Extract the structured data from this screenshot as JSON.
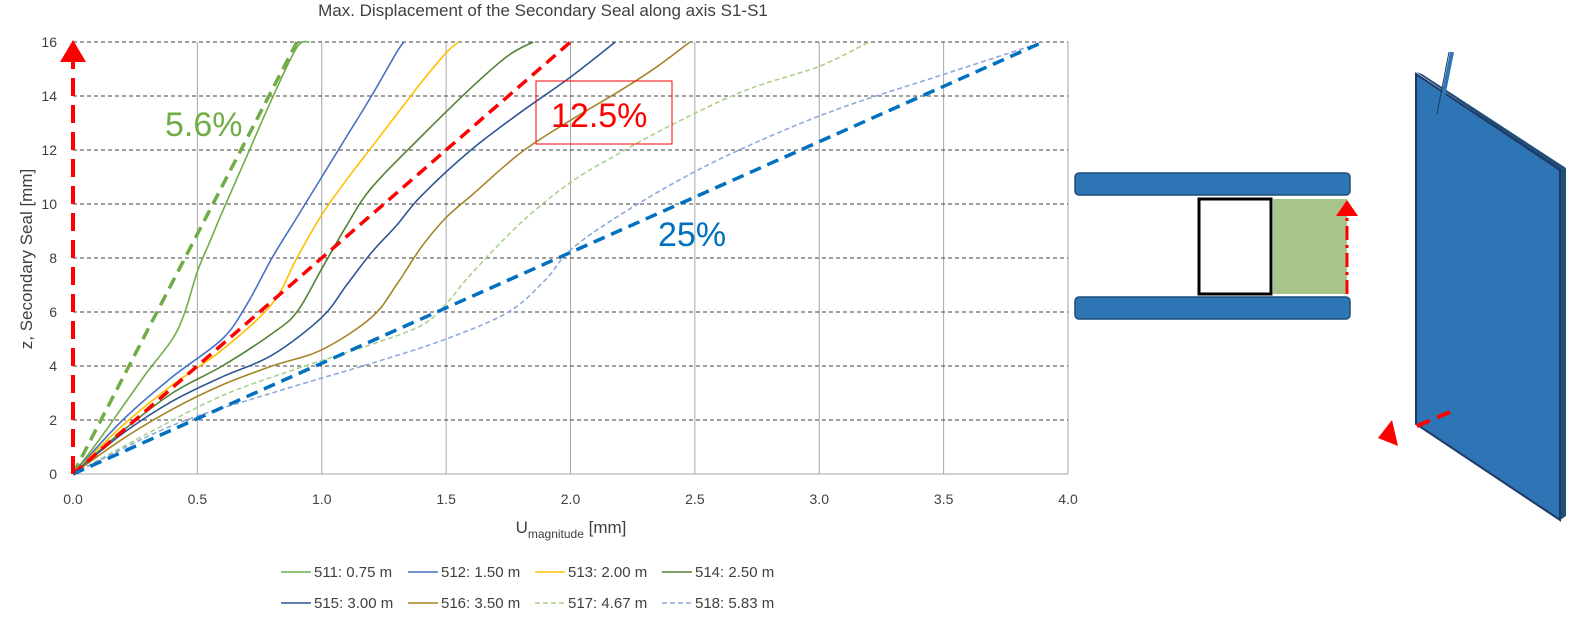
{
  "chart_data": {
    "type": "line",
    "title": "Max. Displacement of the Secondary Seal along axis S1-S1",
    "xlabel": {
      "main": "U",
      "sub": "magnitude",
      "unit": " [mm]"
    },
    "ylabel": "z, Secondary Seal [mm]",
    "xlim": [
      0,
      4
    ],
    "ylim": [
      0,
      16
    ],
    "x_ticks": [
      "0.0",
      "0.5",
      "1.0",
      "1.5",
      "2.0",
      "2.5",
      "3.0",
      "3.5",
      "4.0"
    ],
    "y_ticks": [
      "0",
      "2",
      "4",
      "6",
      "8",
      "10",
      "12",
      "14",
      "16"
    ],
    "grid": {
      "x": "solid",
      "y": "dashed"
    },
    "legend_position": "bottom",
    "series": [
      {
        "name": "511: 0.75 m",
        "color": "#70ad47",
        "dash": "solid",
        "points": [
          [
            0,
            0
          ],
          [
            0.1,
            1.2
          ],
          [
            0.2,
            2.5
          ],
          [
            0.3,
            3.8
          ],
          [
            0.4,
            5.0
          ],
          [
            0.45,
            6.0
          ],
          [
            0.5,
            7.5
          ],
          [
            0.55,
            8.6
          ],
          [
            0.6,
            9.7
          ],
          [
            0.7,
            11.8
          ],
          [
            0.8,
            13.9
          ],
          [
            0.9,
            15.8
          ],
          [
            0.95,
            16
          ]
        ]
      },
      {
        "name": "512: 1.50 m",
        "color": "#4472c4",
        "dash": "solid",
        "points": [
          [
            0,
            0
          ],
          [
            0.2,
            2.0
          ],
          [
            0.4,
            3.6
          ],
          [
            0.6,
            5.0
          ],
          [
            0.7,
            6.3
          ],
          [
            0.8,
            8.0
          ],
          [
            0.9,
            9.5
          ],
          [
            1.0,
            11.0
          ],
          [
            1.1,
            12.5
          ],
          [
            1.2,
            14.0
          ],
          [
            1.3,
            15.6
          ],
          [
            1.33,
            16
          ]
        ]
      },
      {
        "name": "513: 2.00 m",
        "color": "#ffc000",
        "dash": "solid",
        "points": [
          [
            0,
            0
          ],
          [
            0.2,
            1.8
          ],
          [
            0.4,
            3.3
          ],
          [
            0.6,
            4.6
          ],
          [
            0.8,
            6.3
          ],
          [
            0.9,
            8.0
          ],
          [
            1.0,
            9.6
          ],
          [
            1.1,
            10.9
          ],
          [
            1.2,
            12.1
          ],
          [
            1.3,
            13.3
          ],
          [
            1.4,
            14.5
          ],
          [
            1.5,
            15.6
          ],
          [
            1.55,
            16
          ]
        ]
      },
      {
        "name": "514: 2.50 m",
        "color": "#548235",
        "dash": "solid",
        "points": [
          [
            0,
            0
          ],
          [
            0.2,
            1.6
          ],
          [
            0.4,
            3.0
          ],
          [
            0.6,
            4.0
          ],
          [
            0.8,
            5.2
          ],
          [
            0.9,
            6.0
          ],
          [
            1.0,
            7.6
          ],
          [
            1.1,
            9.2
          ],
          [
            1.2,
            10.6
          ],
          [
            1.4,
            12.5
          ],
          [
            1.6,
            14.3
          ],
          [
            1.75,
            15.5
          ],
          [
            1.85,
            16
          ]
        ]
      },
      {
        "name": "515: 3.00 m",
        "color": "#2f5597",
        "dash": "solid",
        "points": [
          [
            0,
            0
          ],
          [
            0.2,
            1.5
          ],
          [
            0.4,
            2.7
          ],
          [
            0.6,
            3.6
          ],
          [
            0.8,
            4.4
          ],
          [
            1.0,
            5.8
          ],
          [
            1.1,
            7.0
          ],
          [
            1.2,
            8.2
          ],
          [
            1.3,
            9.2
          ],
          [
            1.4,
            10.3
          ],
          [
            1.6,
            12.0
          ],
          [
            1.8,
            13.4
          ],
          [
            2.0,
            14.7
          ],
          [
            2.18,
            16
          ]
        ]
      },
      {
        "name": "516: 3.50 m",
        "color": "#a58427",
        "dash": "solid",
        "points": [
          [
            0,
            0
          ],
          [
            0.2,
            1.3
          ],
          [
            0.4,
            2.4
          ],
          [
            0.6,
            3.3
          ],
          [
            0.8,
            4.0
          ],
          [
            1.0,
            4.6
          ],
          [
            1.2,
            5.8
          ],
          [
            1.3,
            7.0
          ],
          [
            1.4,
            8.4
          ],
          [
            1.5,
            9.5
          ],
          [
            1.6,
            10.3
          ],
          [
            1.8,
            11.9
          ],
          [
            2.0,
            13.1
          ],
          [
            2.2,
            14.2
          ],
          [
            2.35,
            15.1
          ],
          [
            2.48,
            16
          ]
        ]
      },
      {
        "name": "517: 4.67 m",
        "color": "#a9d18e",
        "dash": "dashed",
        "points": [
          [
            0,
            0
          ],
          [
            0.3,
            1.5
          ],
          [
            0.6,
            2.9
          ],
          [
            0.9,
            3.9
          ],
          [
            1.2,
            4.8
          ],
          [
            1.4,
            5.5
          ],
          [
            1.5,
            6.3
          ],
          [
            1.6,
            7.4
          ],
          [
            1.8,
            9.3
          ],
          [
            2.0,
            10.8
          ],
          [
            2.2,
            11.9
          ],
          [
            2.4,
            12.9
          ],
          [
            2.7,
            14.2
          ],
          [
            3.0,
            15.1
          ],
          [
            3.2,
            16
          ]
        ]
      },
      {
        "name": "518: 5.83 m",
        "color": "#8faadc",
        "dash": "dashed",
        "points": [
          [
            0,
            0
          ],
          [
            0.4,
            1.8
          ],
          [
            0.8,
            3.0
          ],
          [
            1.2,
            4.1
          ],
          [
            1.5,
            5.0
          ],
          [
            1.75,
            6.0
          ],
          [
            1.9,
            7.2
          ],
          [
            2.0,
            8.3
          ],
          [
            2.2,
            9.6
          ],
          [
            2.5,
            11.2
          ],
          [
            2.8,
            12.5
          ],
          [
            3.1,
            13.6
          ],
          [
            3.5,
            14.8
          ],
          [
            3.9,
            16
          ]
        ]
      }
    ],
    "reference_lines": [
      {
        "label": "5.6%",
        "color": "#70ad47",
        "from": [
          0,
          0
        ],
        "to": [
          0.9,
          16
        ]
      },
      {
        "label": "12.5%",
        "color": "#ff0000",
        "from": [
          0,
          0
        ],
        "to": [
          2.0,
          16
        ]
      },
      {
        "label": "25%",
        "color": "#0070c0",
        "from": [
          0,
          0
        ],
        "to": [
          3.9,
          16
        ]
      }
    ]
  }
}
